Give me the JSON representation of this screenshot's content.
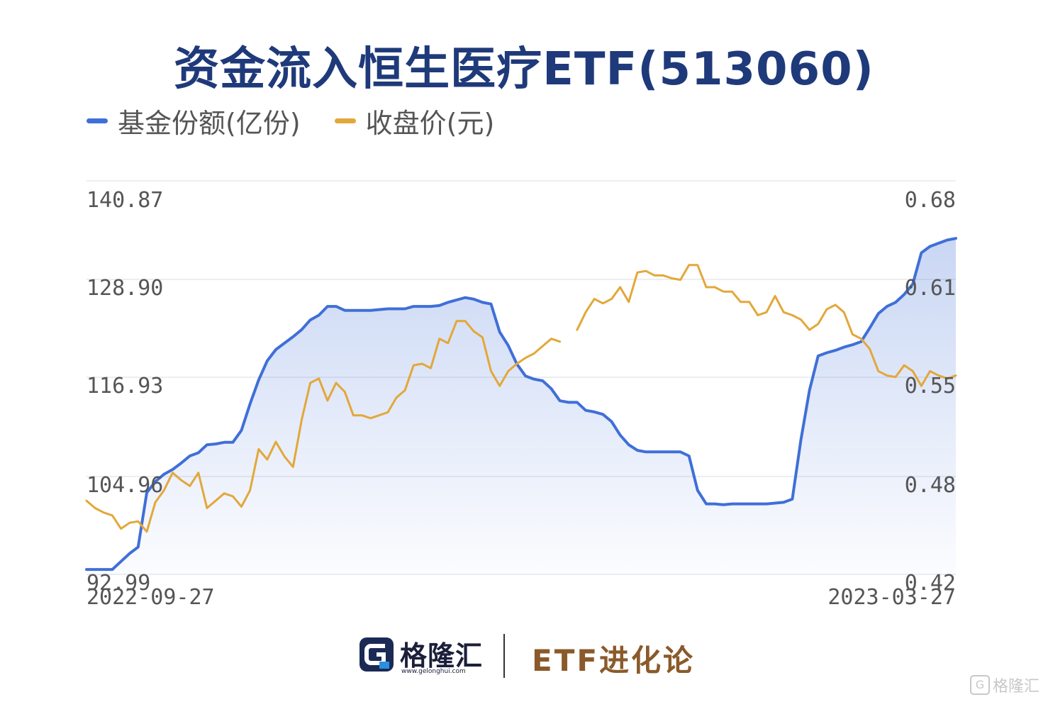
{
  "title": "资金流入恒生医疗ETF(513060)",
  "legend": [
    {
      "label": "基金份额(亿份)",
      "color": "#3f6fd8"
    },
    {
      "label": "收盘价(元)",
      "color": "#e3a73a"
    }
  ],
  "footer": {
    "brand_name": "格隆汇",
    "brand_url": "www.gelonghui.com",
    "etf_brand": "ETF进化论",
    "watermark": "格隆汇",
    "watermark_icon": "gelonghui-logo-icon"
  },
  "chart_data": {
    "type": "line",
    "title": "资金流入恒生医疗ETF(513060)",
    "x_start_label": "2022-09-27",
    "x_end_label": "2023-03-27",
    "y_left": {
      "ticks": [
        "140.87",
        "128.90",
        "116.93",
        "104.96",
        "92.99"
      ],
      "min": 92.99,
      "max": 140.87
    },
    "y_right": {
      "ticks": [
        "0.68",
        "0.61",
        "0.55",
        "0.48",
        "0.42"
      ],
      "min": 0.42,
      "max": 0.68
    },
    "grid": true,
    "legend_position": "top-left",
    "series": [
      {
        "name": "基金份额(亿份)",
        "axis": "left",
        "color": "#3f6fd8",
        "area": true,
        "values": [
          93.6,
          93.6,
          93.6,
          93.6,
          94.6,
          95.6,
          96.4,
          103.2,
          104.6,
          105.5,
          106.1,
          106.9,
          107.8,
          108.2,
          109.2,
          109.3,
          109.5,
          109.5,
          111.0,
          114.3,
          117.3,
          119.7,
          121.1,
          121.9,
          122.7,
          123.6,
          124.8,
          125.4,
          126.5,
          126.5,
          126.0,
          126.0,
          126.0,
          126.0,
          126.1,
          126.2,
          126.2,
          126.2,
          126.5,
          126.5,
          126.5,
          126.6,
          127.0,
          127.3,
          127.6,
          127.4,
          127.0,
          126.8,
          123.3,
          121.6,
          119.3,
          117.8,
          117.4,
          117.2,
          116.2,
          114.7,
          114.5,
          114.5,
          113.5,
          113.3,
          113.0,
          112.1,
          110.4,
          109.2,
          108.5,
          108.3,
          108.3,
          108.3,
          108.3,
          108.3,
          107.8,
          103.5,
          101.8,
          101.8,
          101.7,
          101.8,
          101.8,
          101.8,
          101.8,
          101.8,
          101.9,
          102.0,
          102.4,
          109.8,
          116.0,
          120.3,
          120.7,
          121.0,
          121.4,
          121.7,
          122.1,
          123.8,
          125.6,
          126.5,
          127.0,
          128.0,
          129.3,
          133.2,
          134.0,
          134.4,
          134.8,
          135.0
        ],
        "gaps": []
      },
      {
        "name": "收盘价(元)",
        "axis": "right",
        "color": "#e3a73a",
        "area": false,
        "values": [
          0.47,
          0.465,
          0.462,
          0.46,
          0.451,
          0.455,
          0.456,
          0.449,
          0.469,
          0.477,
          0.489,
          0.484,
          0.48,
          0.489,
          0.465,
          0.47,
          0.475,
          0.473,
          0.466,
          0.477,
          0.505,
          0.498,
          0.51,
          0.5,
          0.493,
          0.525,
          0.55,
          0.553,
          0.538,
          0.55,
          0.544,
          0.528,
          0.528,
          0.526,
          0.528,
          0.53,
          0.54,
          0.545,
          0.562,
          0.563,
          0.56,
          0.58,
          0.577,
          0.592,
          0.592,
          0.585,
          0.581,
          0.558,
          0.548,
          0.558,
          0.563,
          0.567,
          0.57,
          0.575,
          0.58,
          0.578,
          null,
          0.586,
          0.598,
          0.607,
          0.604,
          0.607,
          0.615,
          0.605,
          0.625,
          0.626,
          0.623,
          0.623,
          0.621,
          0.62,
          0.63,
          0.63,
          0.615,
          0.615,
          0.612,
          0.612,
          0.605,
          0.605,
          0.596,
          0.598,
          0.609,
          0.598,
          0.596,
          0.593,
          0.586,
          0.59,
          0.6,
          0.603,
          0.598,
          0.583,
          0.58,
          0.573,
          0.558,
          0.555,
          0.554,
          0.562,
          0.558,
          0.548,
          0.558,
          0.555,
          0.553,
          0.555
        ],
        "gaps": [
          56
        ]
      }
    ]
  }
}
